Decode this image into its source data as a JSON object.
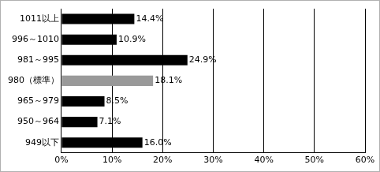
{
  "chart_data": {
    "type": "bar",
    "orientation": "horizontal",
    "categories": [
      "1011以上",
      "996～1010",
      "981～995",
      "980（標準）",
      "965～979",
      "950～964",
      "949以下"
    ],
    "values": [
      14.4,
      10.9,
      24.9,
      18.1,
      8.5,
      7.1,
      16
    ],
    "value_labels": [
      "14.4%",
      "10.9%",
      "24.9%",
      "18.1%",
      "8.5%",
      "7.1%",
      "16.0%"
    ],
    "data_labels": true,
    "colors": [
      "#000000",
      "#000000",
      "#000000",
      "#999999",
      "#000000",
      "#000000",
      "#000000"
    ],
    "xlim": [
      0,
      60
    ],
    "xticks": [
      {
        "value": 0,
        "label": "0%"
      },
      {
        "value": 10,
        "label": "10%"
      },
      {
        "value": 20,
        "label": "20%"
      },
      {
        "value": 30,
        "label": "30%"
      },
      {
        "value": 40,
        "label": "40%"
      },
      {
        "value": 50,
        "label": "50%"
      },
      {
        "value": 60,
        "label": "60%"
      }
    ],
    "grid": true
  }
}
